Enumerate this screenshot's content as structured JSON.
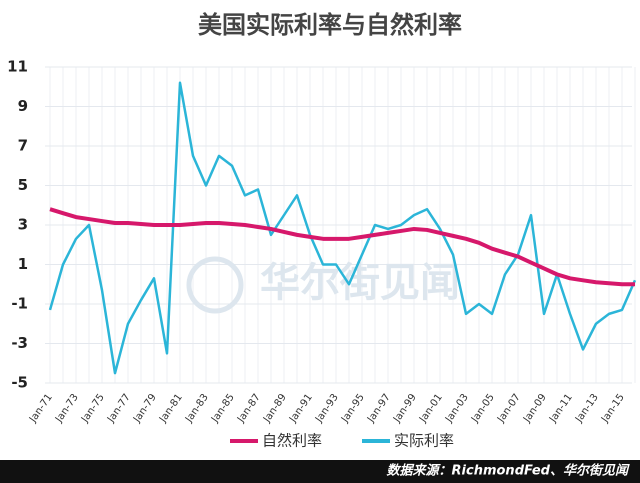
{
  "chart_data": {
    "type": "line",
    "title": "美国实际利率与自然利率",
    "categories": [
      "Jan-71",
      null,
      "Jan-73",
      null,
      "Jan-75",
      null,
      "Jan-77",
      null,
      "Jan-79",
      null,
      "Jan-81",
      null,
      "Jan-83",
      null,
      "Jan-85",
      null,
      "Jan-87",
      null,
      "Jan-89",
      null,
      "Jan-91",
      null,
      "Jan-93",
      null,
      "Jan-95",
      null,
      "Jan-97",
      null,
      "Jan-99",
      null,
      "Jan-01",
      null,
      "Jan-03",
      null,
      "Jan-05",
      null,
      "Jan-07",
      null,
      "Jan-09",
      null,
      "Jan-11",
      null,
      "Jan-13",
      null,
      "Jan-15",
      null
    ],
    "series": [
      {
        "name": "自然利率",
        "color": "#d6186b",
        "values": [
          3.8,
          3.6,
          3.4,
          3.3,
          3.2,
          3.1,
          3.1,
          3.05,
          3.0,
          3.0,
          3.0,
          3.05,
          3.1,
          3.1,
          3.05,
          3.0,
          2.9,
          2.8,
          2.65,
          2.5,
          2.4,
          2.3,
          2.3,
          2.3,
          2.4,
          2.5,
          2.6,
          2.7,
          2.8,
          2.75,
          2.6,
          2.45,
          2.3,
          2.1,
          1.8,
          1.6,
          1.4,
          1.1,
          0.8,
          0.5,
          0.3,
          0.2,
          0.1,
          0.05,
          0.0,
          0.0
        ]
      },
      {
        "name": "实际利率",
        "color": "#2bb5d8",
        "values": [
          -1.3,
          1.0,
          2.3,
          3.0,
          -0.3,
          -4.5,
          -2.0,
          -0.8,
          0.3,
          -3.5,
          10.2,
          6.5,
          5.0,
          6.5,
          6.0,
          4.5,
          4.8,
          2.5,
          3.5,
          4.5,
          2.5,
          1.0,
          1.0,
          0.0,
          1.5,
          3.0,
          2.8,
          3.0,
          3.5,
          3.8,
          2.8,
          1.5,
          -1.5,
          -1.0,
          -1.5,
          0.5,
          1.5,
          3.5,
          -1.5,
          0.5,
          -1.5,
          -3.3,
          -2.0,
          -1.5,
          -1.3,
          0.2
        ]
      }
    ],
    "ylim": [
      -5,
      11
    ],
    "yticks": [
      -5,
      -3,
      -1,
      1,
      3,
      5,
      7,
      9,
      11
    ],
    "grid": true,
    "watermark": "华尔街见闻",
    "source": "数据来源：RichmondFed、华尔街见闻"
  }
}
